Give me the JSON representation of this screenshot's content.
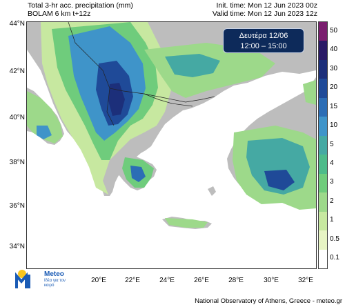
{
  "header": {
    "line1_left": "Total 3-hr acc. precipitation (mm)",
    "line2_left": "BOLAM 6 km t+12z",
    "line1_right": "Init. time: Mon 12 Jun 2023 00z",
    "line2_right": "Valid time: Mon 12 Jun 2023 12z"
  },
  "date_box": {
    "day": "Δευτέρα 12/06",
    "hours": "12:00 – 15:00"
  },
  "axes": {
    "lat_labels": [
      "44°N",
      "42°N",
      "40°N",
      "38°N",
      "36°N",
      "34°N"
    ],
    "lon_labels": [
      "20°E",
      "22°E",
      "24°E",
      "26°E",
      "28°E",
      "30°E",
      "32°E"
    ]
  },
  "legend": {
    "levels": [
      "50",
      "40",
      "30",
      "20",
      "15",
      "10",
      "5",
      "4",
      "3",
      "2",
      "1",
      "0.5",
      "0.1"
    ],
    "colors": [
      "#7a1e6e",
      "#2a1a66",
      "#1c2f7a",
      "#1f4a98",
      "#2c6db5",
      "#3f94c9",
      "#45a9a3",
      "#4dbb8a",
      "#6fcc7c",
      "#9dd98a",
      "#c7e8a0",
      "#e7f4c4",
      "#ffffff"
    ]
  },
  "logo": {
    "brand": "Meteo",
    "tagline": "Ιδέα για τον καιρό"
  },
  "footer": "National Observatory of Athens, Greece - meteo.gr",
  "colors": {
    "sea": "#ffffff",
    "land": "#bdbdbd",
    "box_bg": "#0d2a5a"
  }
}
